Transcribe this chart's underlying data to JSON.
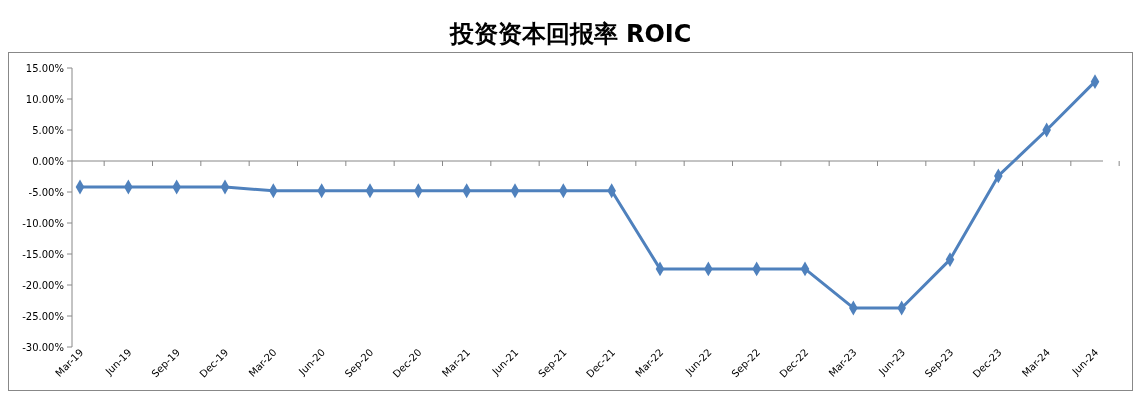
{
  "chart_data": {
    "type": "line",
    "title": "投资资本回报率 ROIC",
    "categories": [
      "Mar-19",
      "Jun-19",
      "Sep-19",
      "Dec-19",
      "Mar-20",
      "Jun-20",
      "Sep-20",
      "Dec-20",
      "Mar-21",
      "Jun-21",
      "Sep-21",
      "Dec-21",
      "Mar-22",
      "Jun-22",
      "Sep-22",
      "Dec-22",
      "Mar-23",
      "Jun-23",
      "Sep-23",
      "Dec-23",
      "Mar-24",
      "Jun-24"
    ],
    "series": [
      {
        "color": "#4f81bd",
        "values": [
          -4.2,
          -4.2,
          -4.2,
          -4.2,
          -4.8,
          -4.8,
          -4.8,
          -4.8,
          -4.8,
          -4.8,
          -4.8,
          -4.8,
          -17.4,
          -17.4,
          -17.4,
          -17.4,
          -23.7,
          -23.7,
          -15.9,
          -2.4,
          5.0,
          12.8
        ]
      }
    ],
    "ylim": [
      -30,
      15
    ],
    "yticks": [
      {
        "value": -30,
        "label": "-30.00%"
      },
      {
        "value": -25,
        "label": "-25.00%"
      },
      {
        "value": -20,
        "label": "-20.00%"
      },
      {
        "value": -15,
        "label": "-15.00%"
      },
      {
        "value": -10,
        "label": "-10.00%"
      },
      {
        "value": -5,
        "label": "-5.00%"
      },
      {
        "value": 0,
        "label": "0.00%"
      },
      {
        "value": 5,
        "label": "5.00%"
      },
      {
        "value": 10,
        "label": "10.00%"
      },
      {
        "value": 15,
        "label": "15.00%"
      }
    ],
    "marker": "diamond",
    "line_style": "solid"
  }
}
